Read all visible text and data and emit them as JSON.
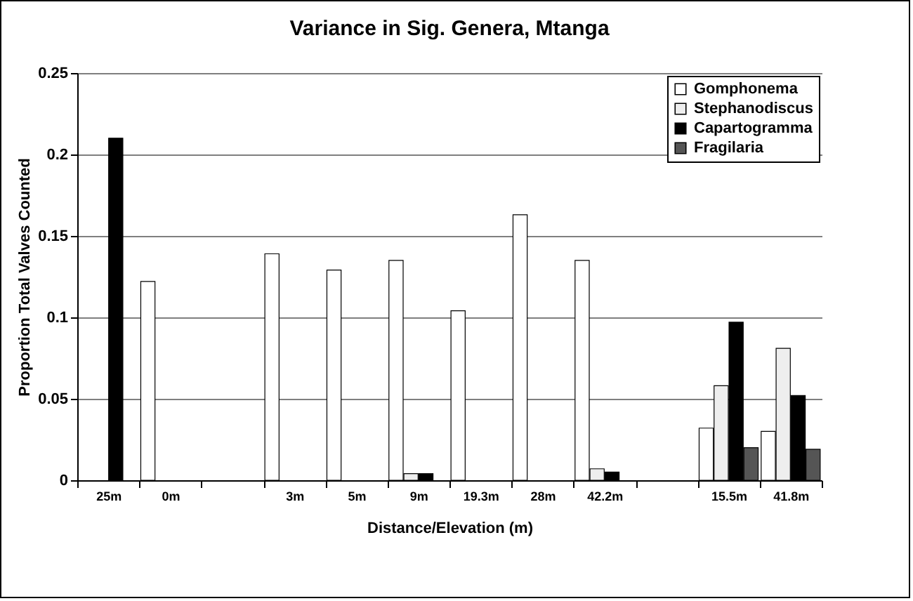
{
  "chart_data": {
    "type": "bar",
    "title": "Variance in Sig. Genera, Mtanga",
    "xlabel": "Distance/Elevation (m)",
    "ylabel": "Proportion Total Valves Counted",
    "categories": [
      "25m",
      "0m",
      null,
      "3m",
      "5m",
      "9m",
      "19.3m",
      "28m",
      "42.2m",
      null,
      "15.5m",
      "41.8m"
    ],
    "series": [
      {
        "name": "Gomphonema",
        "color": "#ffffff",
        "values": [
          null,
          0.122,
          null,
          0.139,
          0.129,
          0.135,
          0.104,
          0.163,
          0.135,
          null,
          0.032,
          0.03
        ]
      },
      {
        "name": "Stephanodiscus",
        "color": "#eeeeee",
        "values": [
          null,
          null,
          null,
          null,
          null,
          0.004,
          null,
          null,
          0.007,
          null,
          0.058,
          0.081
        ]
      },
      {
        "name": "Capartogramma",
        "color": "#000000",
        "values": [
          0.21,
          null,
          null,
          null,
          null,
          0.004,
          null,
          null,
          0.005,
          null,
          0.097,
          0.052
        ]
      },
      {
        "name": "Fragilaria",
        "color": "#555555",
        "values": [
          null,
          null,
          null,
          null,
          null,
          null,
          null,
          null,
          null,
          null,
          0.02,
          0.019
        ]
      }
    ],
    "ylim": [
      0,
      0.25
    ],
    "yticks": [
      0,
      0.05,
      0.1,
      0.15,
      0.2,
      0.25
    ],
    "grid": "y",
    "legend": "top right"
  }
}
